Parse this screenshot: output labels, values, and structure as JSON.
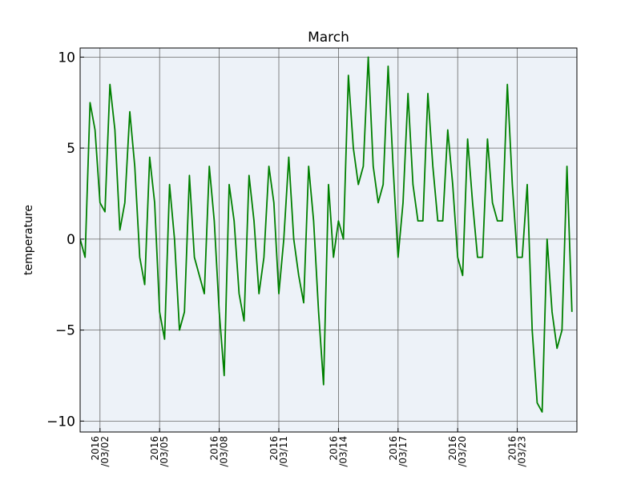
{
  "chart_data": {
    "type": "line",
    "title": "March",
    "y_label": "temperature",
    "x": [
      "2016-03-01 00:00",
      "2016-03-01 06:00",
      "2016-03-01 12:00",
      "2016-03-01 18:00",
      "2016-03-02 00:00",
      "2016-03-02 06:00",
      "2016-03-02 12:00",
      "2016-03-02 18:00",
      "2016-03-03 00:00",
      "2016-03-03 06:00",
      "2016-03-03 12:00",
      "2016-03-03 18:00",
      "2016-03-04 00:00",
      "2016-03-04 06:00",
      "2016-03-04 12:00",
      "2016-03-04 18:00",
      "2016-03-05 00:00",
      "2016-03-05 06:00",
      "2016-03-05 12:00",
      "2016-03-05 18:00",
      "2016-03-06 00:00",
      "2016-03-06 06:00",
      "2016-03-06 12:00",
      "2016-03-06 18:00",
      "2016-03-07 00:00",
      "2016-03-07 06:00",
      "2016-03-07 12:00",
      "2016-03-07 18:00",
      "2016-03-08 00:00",
      "2016-03-08 06:00",
      "2016-03-08 12:00",
      "2016-03-08 18:00",
      "2016-03-09 00:00",
      "2016-03-09 06:00",
      "2016-03-09 12:00",
      "2016-03-09 18:00",
      "2016-03-10 00:00",
      "2016-03-10 06:00",
      "2016-03-10 12:00",
      "2016-03-10 18:00",
      "2016-03-11 00:00",
      "2016-03-11 06:00",
      "2016-03-11 12:00",
      "2016-03-11 18:00",
      "2016-03-12 00:00",
      "2016-03-12 06:00",
      "2016-03-12 12:00",
      "2016-03-12 18:00",
      "2016-03-13 00:00",
      "2016-03-13 06:00",
      "2016-03-13 12:00",
      "2016-03-13 18:00",
      "2016-03-14 00:00",
      "2016-03-14 06:00",
      "2016-03-14 12:00",
      "2016-03-14 18:00",
      "2016-03-15 00:00",
      "2016-03-15 06:00",
      "2016-03-15 12:00",
      "2016-03-15 18:00",
      "2016-03-16 00:00",
      "2016-03-16 06:00",
      "2016-03-16 12:00",
      "2016-03-16 18:00",
      "2016-03-17 00:00",
      "2016-03-17 06:00",
      "2016-03-17 12:00",
      "2016-03-17 18:00",
      "2016-03-18 00:00",
      "2016-03-18 06:00",
      "2016-03-18 12:00",
      "2016-03-18 18:00",
      "2016-03-19 00:00",
      "2016-03-19 06:00",
      "2016-03-19 12:00",
      "2016-03-19 18:00",
      "2016-03-20 00:00",
      "2016-03-20 06:00",
      "2016-03-20 12:00",
      "2016-03-20 18:00",
      "2016-03-21 00:00",
      "2016-03-21 06:00",
      "2016-03-21 12:00",
      "2016-03-21 18:00",
      "2016-03-22 00:00",
      "2016-03-22 06:00",
      "2016-03-22 12:00",
      "2016-03-22 18:00",
      "2016-03-23 00:00",
      "2016-03-23 06:00",
      "2016-03-23 12:00",
      "2016-03-23 18:00",
      "2016-03-24 00:00",
      "2016-03-24 06:00",
      "2016-03-24 12:00",
      "2016-03-24 18:00",
      "2016-03-25 00:00",
      "2016-03-25 06:00",
      "2016-03-25 12:00",
      "2016-03-25 18:00"
    ],
    "values": [
      0,
      -1,
      7.5,
      6,
      2,
      1.5,
      8.5,
      6,
      0.5,
      2,
      7,
      4,
      -1,
      -2.5,
      4.5,
      2,
      -4,
      -5.5,
      3,
      0,
      -5,
      -4,
      3.5,
      -1,
      -2,
      -3,
      4,
      1,
      -4,
      -7.5,
      3,
      1,
      -3,
      -4.5,
      3.5,
      1,
      -3,
      -1,
      4,
      2,
      -3,
      0,
      4.5,
      0,
      -2,
      -3.5,
      4,
      1,
      -4,
      -8,
      3,
      -1,
      1,
      0,
      9,
      5,
      3,
      4,
      10,
      4,
      2,
      3,
      9.5,
      4,
      -1,
      2,
      8,
      3,
      1,
      1,
      8,
      4,
      1,
      1,
      6,
      3,
      -1,
      -2,
      5.5,
      2,
      -1,
      -1,
      5.5,
      2,
      1,
      1,
      8.5,
      3,
      -1,
      -1,
      3,
      -5,
      -9,
      -9.5,
      0,
      -4,
      -6,
      -5,
      4,
      -4
    ],
    "color": "#008000",
    "xlim": [
      "2016-03-01 00:00",
      "2016-03-26 00:00"
    ],
    "xticks": [
      {
        "value": "2016-03-02",
        "label": "2016\n/03/02"
      },
      {
        "value": "2016-03-05",
        "label": "2016\n/03/05"
      },
      {
        "value": "2016-03-08",
        "label": "2016\n/03/08"
      },
      {
        "value": "2016-03-11",
        "label": "2016\n/03/11"
      },
      {
        "value": "2016-03-14",
        "label": "2016\n/03/14"
      },
      {
        "value": "2016-03-17",
        "label": "2016\n/03/17"
      },
      {
        "value": "2016-03-20",
        "label": "2016\n/03/20"
      },
      {
        "value": "2016-03-23",
        "label": "2016\n/03/23"
      }
    ],
    "ylim": [
      -10.6,
      10.5
    ],
    "yticks": [
      {
        "value": -10,
        "label": "−10"
      },
      {
        "value": -5,
        "label": "−5"
      },
      0,
      5,
      10
    ],
    "grid": true,
    "background": "#edf2f8"
  }
}
